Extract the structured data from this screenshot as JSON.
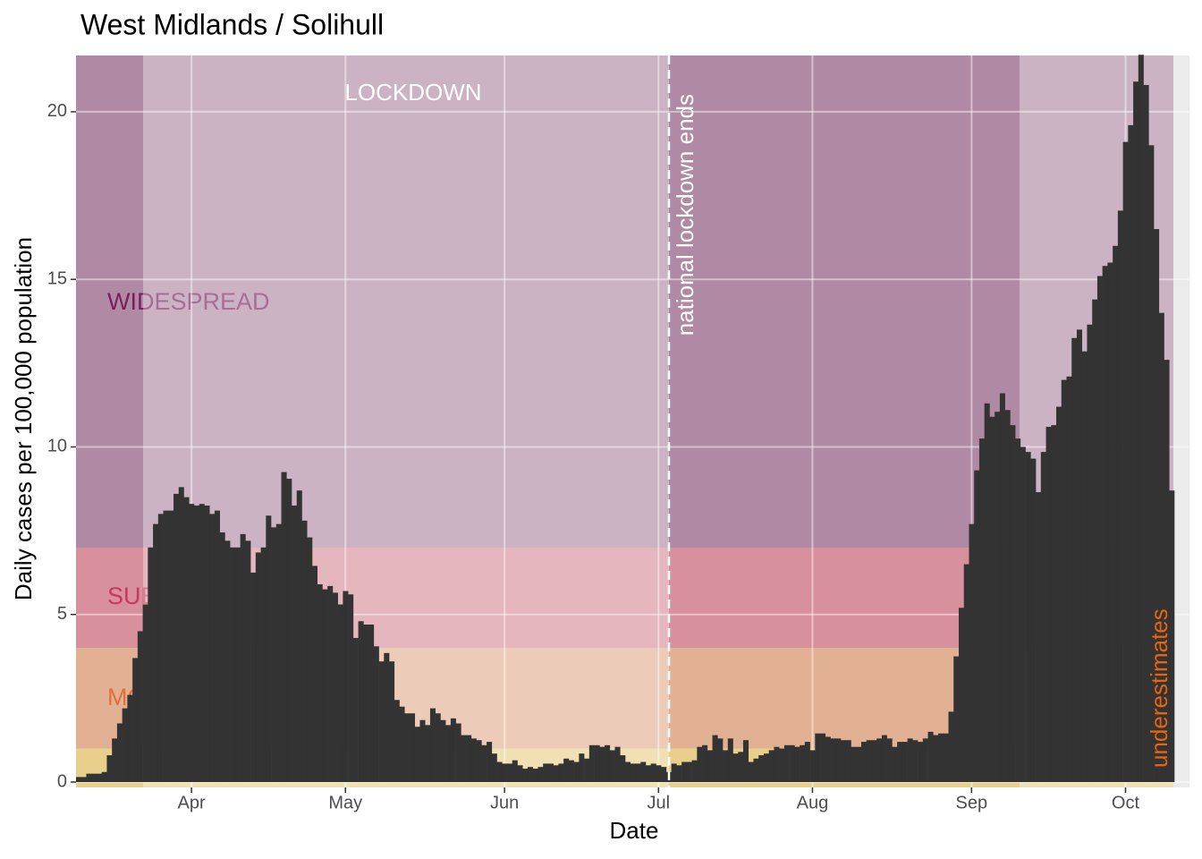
{
  "chart_data": {
    "type": "bar",
    "title": "West Midlands / Solihull",
    "x_label": "Date",
    "y_label": "Daily cases per 100,000 population",
    "annotations": {
      "lockdown": "LOCKDOWN",
      "lockdown_end": "national lockdown ends",
      "underestimates": "underestimates"
    },
    "levels": [
      "WIDESPREAD",
      "SUBSTANTIAL",
      "MODERATE"
    ],
    "color": "#333333",
    "ylim": [
      -0.16,
      21.68
    ],
    "yticks": [
      0,
      5,
      10,
      15,
      20
    ],
    "grid": true,
    "categories": [
      null,
      null,
      null,
      null,
      null,
      null,
      null,
      null,
      null,
      null,
      null,
      null,
      null,
      null,
      null,
      null,
      null,
      null,
      null,
      null,
      null,
      null,
      "Apr",
      null,
      null,
      null,
      null,
      null,
      null,
      null,
      null,
      null,
      null,
      null,
      null,
      null,
      null,
      null,
      null,
      null,
      null,
      null,
      null,
      null,
      null,
      null,
      null,
      null,
      null,
      null,
      null,
      null,
      "May",
      null,
      null,
      null,
      null,
      null,
      null,
      null,
      null,
      null,
      null,
      null,
      null,
      null,
      null,
      null,
      null,
      null,
      null,
      null,
      null,
      null,
      null,
      null,
      null,
      null,
      null,
      null,
      null,
      null,
      null,
      "Jun",
      null,
      null,
      null,
      null,
      null,
      null,
      null,
      null,
      null,
      null,
      null,
      null,
      null,
      null,
      null,
      null,
      null,
      null,
      null,
      null,
      null,
      null,
      null,
      null,
      null,
      null,
      null,
      null,
      null,
      "Jul",
      null,
      null,
      null,
      null,
      null,
      null,
      null,
      null,
      null,
      null,
      null,
      null,
      null,
      null,
      null,
      null,
      null,
      null,
      null,
      null,
      null,
      null,
      null,
      null,
      null,
      null,
      null,
      null,
      null,
      "Aug",
      null,
      null,
      null,
      null,
      null,
      null,
      null,
      null,
      null,
      null,
      null,
      null,
      null,
      null,
      null,
      null,
      null,
      null,
      null,
      null,
      null,
      null,
      null,
      null,
      null,
      null,
      null,
      null,
      null,
      null,
      "Sep",
      null,
      null,
      null,
      null,
      null,
      null,
      null,
      null,
      null,
      null,
      null,
      null,
      null,
      null,
      null,
      null,
      null,
      null,
      null,
      null,
      null,
      null,
      null,
      null,
      null,
      null,
      null,
      null,
      null,
      "Oct",
      null,
      null,
      null,
      null,
      null,
      null,
      null,
      null,
      null
    ],
    "values": [
      0.15,
      0.15,
      0.25,
      0.25,
      0.25,
      0.3,
      0.8,
      1.3,
      1.75,
      2.2,
      2.6,
      3.7,
      4.5,
      5.3,
      7.0,
      7.7,
      8.0,
      8.1,
      8.1,
      8.6,
      8.8,
      8.5,
      8.3,
      8.25,
      8.3,
      8.25,
      8.0,
      8.1,
      7.45,
      7.2,
      7.0,
      7.0,
      7.4,
      7.2,
      6.25,
      6.85,
      7.0,
      7.95,
      7.6,
      7.7,
      9.25,
      9.05,
      8.25,
      8.7,
      7.8,
      7.3,
      6.45,
      5.9,
      5.75,
      5.85,
      5.65,
      5.3,
      5.7,
      5.6,
      4.3,
      4.8,
      4.7,
      4.7,
      4.05,
      3.6,
      3.85,
      3.6,
      2.45,
      2.25,
      2.05,
      2.05,
      1.65,
      1.85,
      1.7,
      2.2,
      2.05,
      1.85,
      1.7,
      1.9,
      1.75,
      1.4,
      1.4,
      1.3,
      1.25,
      1.1,
      1.2,
      0.85,
      0.6,
      0.55,
      0.55,
      0.65,
      0.5,
      0.4,
      0.45,
      0.4,
      0.45,
      0.55,
      0.55,
      0.5,
      0.55,
      0.7,
      0.65,
      0.6,
      0.85,
      0.7,
      1.1,
      1.1,
      1.05,
      1.1,
      0.95,
      1.05,
      0.8,
      0.6,
      0.55,
      0.55,
      0.6,
      0.5,
      0.55,
      0.5,
      0.45,
      0.3,
      0.55,
      0.5,
      0.6,
      0.6,
      0.65,
      1.05,
      1.1,
      0.95,
      1.4,
      1.3,
      0.95,
      1.3,
      0.85,
      0.9,
      1.25,
      0.6,
      0.7,
      0.8,
      0.85,
      0.95,
      1.05,
      1.0,
      1.1,
      1.1,
      1.05,
      1.1,
      1.2,
      0.95,
      1.45,
      1.45,
      1.35,
      1.3,
      1.3,
      1.25,
      1.25,
      1.05,
      1.05,
      1.2,
      1.25,
      1.25,
      1.3,
      1.4,
      1.3,
      1.05,
      1.2,
      1.2,
      1.3,
      1.25,
      1.2,
      1.3,
      1.5,
      1.4,
      1.45,
      1.45,
      2.1,
      3.75,
      5.2,
      6.5,
      7.7,
      9.3,
      10.25,
      11.3,
      10.9,
      11.05,
      11.6,
      11.1,
      10.65,
      10.25,
      10.0,
      9.85,
      9.65,
      8.65,
      9.85,
      10.6,
      10.65,
      11.2,
      12.0,
      12.1,
      13.25,
      13.5,
      12.85,
      13.65,
      14.4,
      15.1,
      15.4,
      15.5,
      16.0,
      17.05,
      19.1,
      19.6,
      20.9,
      21.7,
      20.8,
      19.0,
      16.5,
      14.0,
      12.6,
      8.7
    ]
  }
}
